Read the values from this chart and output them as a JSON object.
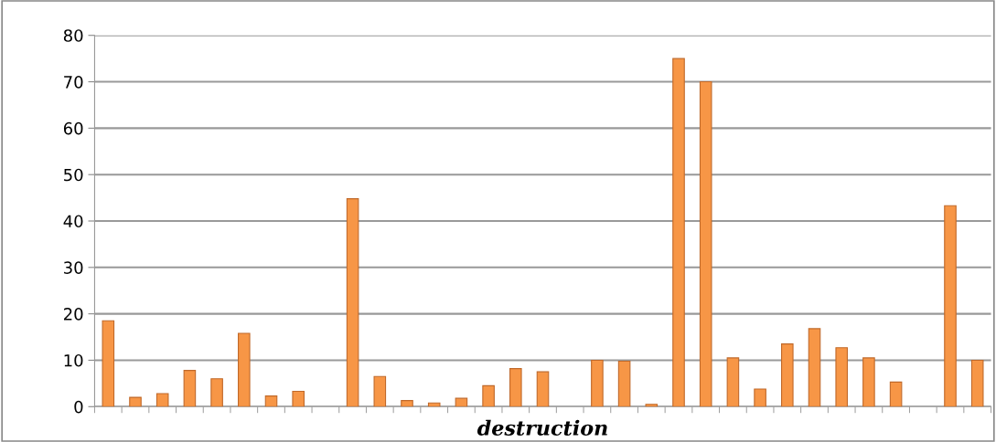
{
  "chart_data": {
    "type": "bar",
    "xlabel": "destruction",
    "categories": [
      null,
      null,
      null,
      null,
      null,
      null,
      null,
      null,
      null,
      null,
      null,
      null,
      null,
      null,
      null,
      null,
      null,
      null,
      null,
      null,
      null,
      null,
      null,
      null,
      null,
      null,
      null,
      null,
      null,
      null,
      null,
      null,
      null
    ],
    "values": [
      18.5,
      2,
      2.8,
      7.8,
      6,
      15.8,
      2.3,
      3.3,
      null,
      44.8,
      6.5,
      1.3,
      0.8,
      1.8,
      4.5,
      8.2,
      7.5,
      null,
      10,
      9.8,
      0.5,
      75,
      70,
      10.5,
      3.8,
      13.5,
      16.8,
      12.7,
      10.5,
      5.3,
      null,
      43.3,
      10
    ],
    "color": "#f79646",
    "ylim": [
      0,
      80
    ],
    "yticks": [
      0,
      10,
      20,
      30,
      40,
      50,
      60,
      70,
      80
    ],
    "grid": "y"
  }
}
